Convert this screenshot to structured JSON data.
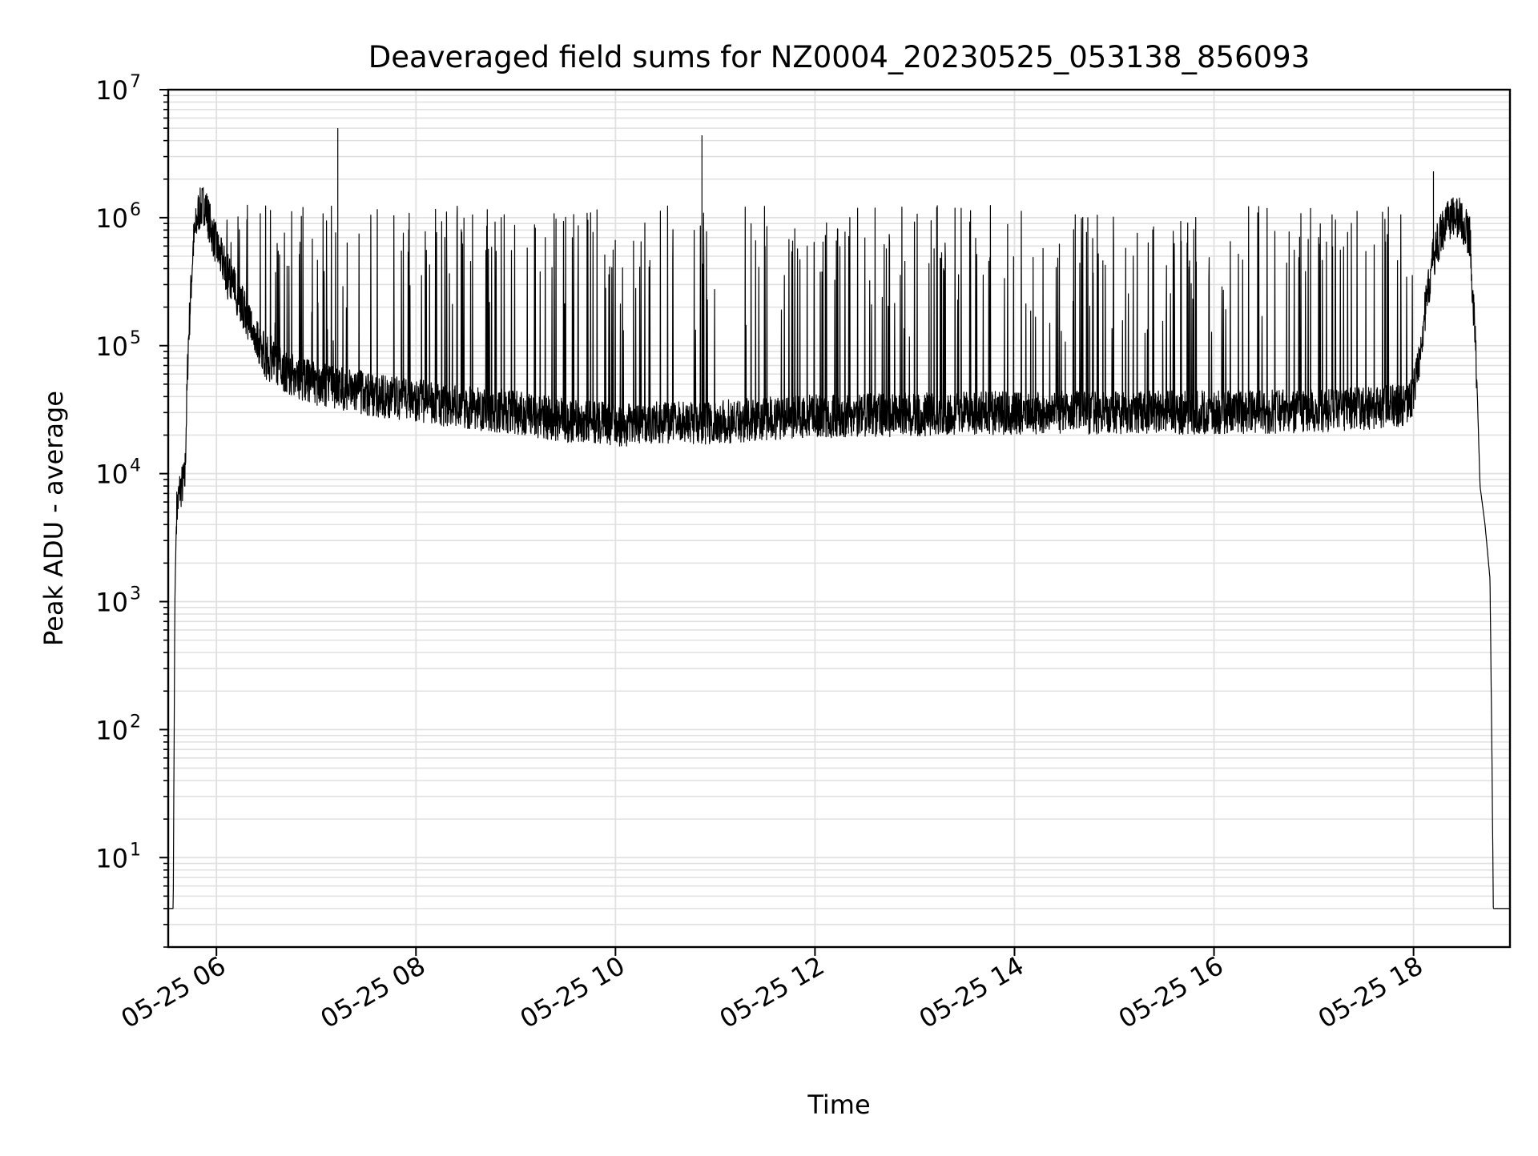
{
  "chart_data": {
    "type": "line",
    "title": "Deaveraged field sums for NZ0004_20230525_053138_856093",
    "xlabel": "Time",
    "ylabel": "Peak ADU - average",
    "yscale": "log",
    "ylim": [
      2,
      10000000
    ],
    "xlim": [
      "2023-05-25T05:31",
      "2023-05-25T18:58"
    ],
    "grid": true,
    "legend": "none",
    "line_color": "#000000",
    "grid_color": "#e0e0e0",
    "x_ticks": [
      {
        "t": "2023-05-25T06:00",
        "label": "05-25 06"
      },
      {
        "t": "2023-05-25T08:00",
        "label": "05-25 08"
      },
      {
        "t": "2023-05-25T10:00",
        "label": "05-25 10"
      },
      {
        "t": "2023-05-25T12:00",
        "label": "05-25 12"
      },
      {
        "t": "2023-05-25T14:00",
        "label": "05-25 14"
      },
      {
        "t": "2023-05-25T16:00",
        "label": "05-25 16"
      },
      {
        "t": "2023-05-25T18:00",
        "label": "05-25 18"
      }
    ],
    "y_ticks": [
      {
        "value": 10,
        "base": "10",
        "exp": "1"
      },
      {
        "value": 100,
        "base": "10",
        "exp": "2"
      },
      {
        "value": 1000,
        "base": "10",
        "exp": "3"
      },
      {
        "value": 10000,
        "base": "10",
        "exp": "4"
      },
      {
        "value": 100000,
        "base": "10",
        "exp": "5"
      },
      {
        "value": 1000000,
        "base": "10",
        "exp": "6"
      },
      {
        "value": 10000000,
        "base": "10",
        "exp": "7"
      }
    ],
    "series": [
      {
        "points": [
          [
            "2023-05-25T05:31",
            4
          ],
          [
            "2023-05-25T05:34",
            4
          ],
          [
            "2023-05-25T05:35",
            1000
          ],
          [
            "2023-05-25T05:36",
            5000
          ],
          [
            "2023-05-25T05:38",
            7500
          ],
          [
            "2023-05-25T05:41",
            9000
          ],
          [
            "2023-05-25T05:43",
            100000
          ],
          [
            "2023-05-25T05:46",
            600000
          ],
          [
            "2023-05-25T05:49",
            1100000
          ],
          [
            "2023-05-25T05:53",
            1300000
          ],
          [
            "2023-05-25T05:57",
            800000
          ],
          [
            "2023-05-25T06:02",
            500000
          ],
          [
            "2023-05-25T06:10",
            300000
          ],
          [
            "2023-05-25T06:20",
            150000
          ],
          [
            "2023-05-25T06:30",
            80000
          ],
          [
            "2023-05-25T06:45",
            60000
          ],
          [
            "2023-05-25T07:00",
            50000
          ],
          [
            "2023-05-25T07:20",
            45000
          ],
          [
            "2023-05-25T07:40",
            40000
          ],
          [
            "2023-05-25T08:00",
            37000
          ],
          [
            "2023-05-25T08:30",
            33000
          ],
          [
            "2023-05-25T09:00",
            30000
          ],
          [
            "2023-05-25T09:30",
            26000
          ],
          [
            "2023-05-25T10:00",
            24000
          ],
          [
            "2023-05-25T10:30",
            25000
          ],
          [
            "2023-05-25T11:00",
            25000
          ],
          [
            "2023-05-25T11:30",
            27000
          ],
          [
            "2023-05-25T12:00",
            28000
          ],
          [
            "2023-05-25T13:00",
            29000
          ],
          [
            "2023-05-25T14:00",
            30000
          ],
          [
            "2023-05-25T15:00",
            30000
          ],
          [
            "2023-05-25T16:00",
            30000
          ],
          [
            "2023-05-25T17:00",
            31000
          ],
          [
            "2023-05-25T17:40",
            33000
          ],
          [
            "2023-05-25T17:58",
            35000
          ],
          [
            "2023-05-25T18:02",
            60000
          ],
          [
            "2023-05-25T18:06",
            150000
          ],
          [
            "2023-05-25T18:12",
            500000
          ],
          [
            "2023-05-25T18:20",
            1000000
          ],
          [
            "2023-05-25T18:28",
            1000000
          ],
          [
            "2023-05-25T18:34",
            700000
          ],
          [
            "2023-05-25T18:38",
            60000
          ],
          [
            "2023-05-25T18:40",
            8000
          ],
          [
            "2023-05-25T18:43",
            4000
          ],
          [
            "2023-05-25T18:46",
            1500
          ],
          [
            "2023-05-25T18:47",
            100
          ],
          [
            "2023-05-25T18:48",
            4
          ],
          [
            "2023-05-25T18:58",
            4
          ]
        ]
      }
    ]
  }
}
